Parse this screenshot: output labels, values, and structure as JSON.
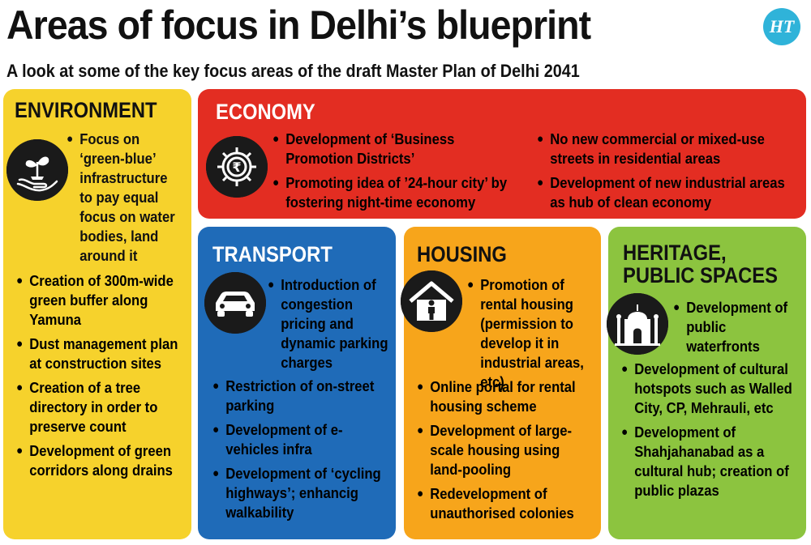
{
  "title": "Areas of focus in Delhi’s blueprint",
  "subtitle": "A look at some of the key focus areas of the draft Master Plan of Delhi 2041",
  "logo": "HT",
  "sections": {
    "environment": {
      "heading": "ENVIRONMENT",
      "color": "#f6d22c",
      "icon": "plant-in-hand-icon",
      "items": [
        "Focus on ‘green-blue’ infrastructure to pay equal focus on water bodies, land around it",
        "Creation of 300m-wide green buffer along Yamuna",
        "Dust management plan at construction sites",
        "Creation of a tree directory in order to preserve count",
        "Development of green corridors along drains"
      ]
    },
    "economy": {
      "heading": "ECONOMY",
      "color": "#e32d22",
      "icon": "rupee-gear-icon",
      "items": [
        "Development of ‘Business Promotion Districts’",
        "Promoting idea of ’24-hour city’ by fostering night-time economy",
        "No new commercial or mixed-use streets in residential areas",
        "Development of new industrial areas as hub of clean economy"
      ]
    },
    "transport": {
      "heading": "TRANSPORT",
      "color": "#1f6bb8",
      "icon": "car-icon",
      "items": [
        "Introduction of congestion pricing and dynamic parking charges",
        "Restriction of on-street parking",
        "Development of e-vehicles infra",
        "Development of ‘cycling highways’; enhancig walkability"
      ]
    },
    "housing": {
      "heading": "HOUSING",
      "color": "#f7a51b",
      "icon": "house-person-icon",
      "items": [
        "Promotion of rental housing (permission to develop it in industrial areas, etc)",
        "Online portal for rental housing scheme",
        "Development of large-scale housing using land-pooling",
        "Redevelopment of unauthorised colonies"
      ]
    },
    "heritage": {
      "heading_line1": "HERITAGE,",
      "heading_line2": "PUBLIC SPACES",
      "color": "#8cc43f",
      "icon": "monument-icon",
      "items": [
        "Development of public waterfronts",
        "Development of cultural hotspots such as Walled City, CP, Mehrauli, etc",
        "Development of Shahjahanabad as a cultural hub; creation of public plazas"
      ]
    }
  }
}
